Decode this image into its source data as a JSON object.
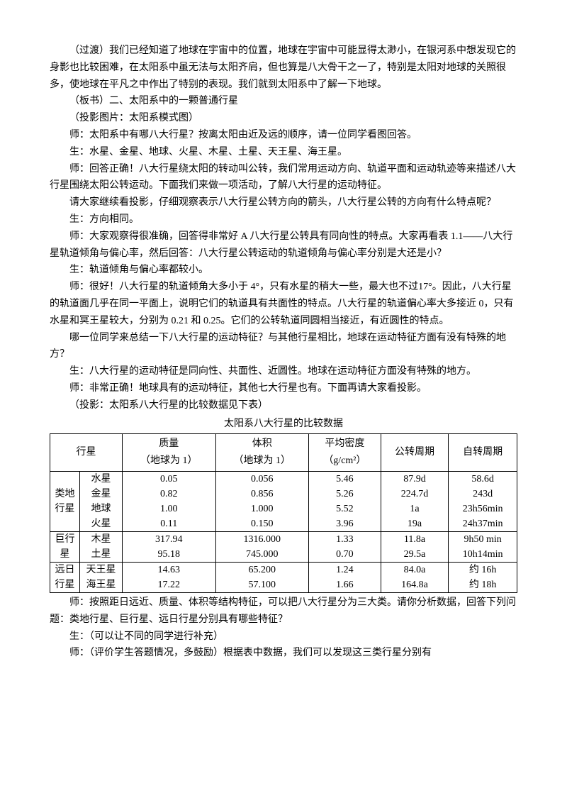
{
  "paragraphs": {
    "p1": "（过渡）我们已经知道了地球在宇宙中的位置，地球在宇宙中可能显得太渺小，在银河系中想发现它的身影也比较困难，在太阳系中虽无法与太阳齐肩，但也算是八大骨干之一了，特别是太阳对地球的关照很多，使地球在平凡之中作出了特别的表现。我们就到太阳系中了解一下地球。",
    "p2": "（板书）二、太阳系中的一颗普通行星",
    "p3": "（投影图片：太阳系模式图）",
    "p4": "师：太阳系中有哪八大行星？按离太阳由近及远的顺序，请一位同学看图回答。",
    "p5": "生：水星、金星、地球、火星、木星、土星、天王星、海王星。",
    "p6": "师：回答正确！八大行星绕太阳的转动叫公转，我们常用运动方向、轨道平面和运动轨迹等来描述八大行星围绕太阳公转运动。下面我们来做一项活动，了解八大行星的运动特征。",
    "p7": "请大家继续看投影，仔细观察表示八大行星公转方向的箭头，八大行星公转的方向有什么特点呢？",
    "p8": "生：方向相同。",
    "p9": "师：大家观察得很准确，回答得非常好 A 八大行星公转具有同向性的特点。大家再看表 1.1——八大行星轨道倾角与偏心率，然后回答：八大行星公转运动的轨道倾角与偏心率分别是大还是小？",
    "p10": "生：轨道倾角与偏心率都较小。",
    "p11": "师：很好！八大行星的轨道倾角大多小于 4°，只有水星的稍大一些，最大也不过17°。因此，八大行星的轨道面几乎在同一平面上，说明它们的轨道具有共面性的特点。八大行星的轨道偏心率大多接近 0，只有水星和冥王星较大，分别为 0.21 和 0.25。它们的公转轨道同圆相当接近，有近圆性的特点。",
    "p12": "哪一位同学来总结一下八大行星的运动特征？与其他行星相比，地球在运动特征方面有没有特殊的地方？",
    "p13": "生：八大行星的运动特征是同向性、共面性、近圆性。地球在运动特征方面没有特殊的地方。",
    "p14": "师：非常正确！地球具有的运动特征，其他七大行星也有。下面再请大家看投影。",
    "p15": "（投影：太阳系八大行星的比较数据见下表）",
    "tableTitle": "太阳系八大行星的比较数据",
    "p16": "师：按照距日远近、质量、体积等结构特征，可以把八大行星分为三大类。请你分析数据，回答下列问题：类地行星、巨行星、远日行星分别具有哪些特征？",
    "p17": "生：（可以让不同的同学进行补充）",
    "p18": "师：（评价学生答题情况，多鼓励）根据表中数据，我们可以发现这三类行星分别有"
  },
  "table": {
    "headers": {
      "c1": "行星",
      "c2a": "质量",
      "c2b": "（地球为 1）",
      "c3a": "体积",
      "c3b": "（地球为 1）",
      "c4a": "平均密度",
      "c4b": "（g/cm²）",
      "c5": "公转周期",
      "c6": "自转周期"
    },
    "groups": [
      {
        "label_l1": "类地",
        "label_l2": "行星",
        "rows": [
          {
            "name": "水星",
            "mass": "0.05",
            "vol": "0.056",
            "dens": "5.46",
            "rev": "87.9d",
            "rot": "58.6d"
          },
          {
            "name": "金星",
            "mass": "0.82",
            "vol": "0.856",
            "dens": "5.26",
            "rev": "224.7d",
            "rot": "243d"
          },
          {
            "name": "地球",
            "mass": "1.00",
            "vol": "1.000",
            "dens": "5.52",
            "rev": "1a",
            "rot": "23h56min"
          },
          {
            "name": "火星",
            "mass": "0.11",
            "vol": "0.150",
            "dens": "3.96",
            "rev": "19a",
            "rot": "24h37min"
          }
        ]
      },
      {
        "label_l1": "巨行",
        "label_l2": "星",
        "rows": [
          {
            "name": "木星",
            "mass": "317.94",
            "vol": "1316.000",
            "dens": "1.33",
            "rev": "11.8a",
            "rot": "9h50 min"
          },
          {
            "name": "土星",
            "mass": "95.18",
            "vol": "745.000",
            "dens": "0.70",
            "rev": "29.5a",
            "rot": "10h14min"
          }
        ]
      },
      {
        "label_l1": "远日",
        "label_l2": "行星",
        "rows": [
          {
            "name": "天王星",
            "mass": "14.63",
            "vol": "65.200",
            "dens": "1.24",
            "rev": "84.0a",
            "rot": "约 16h"
          },
          {
            "name": "海王星",
            "mass": "17.22",
            "vol": "57.100",
            "dens": "1.66",
            "rev": "164.8a",
            "rot": "约 18h"
          }
        ]
      }
    ]
  }
}
